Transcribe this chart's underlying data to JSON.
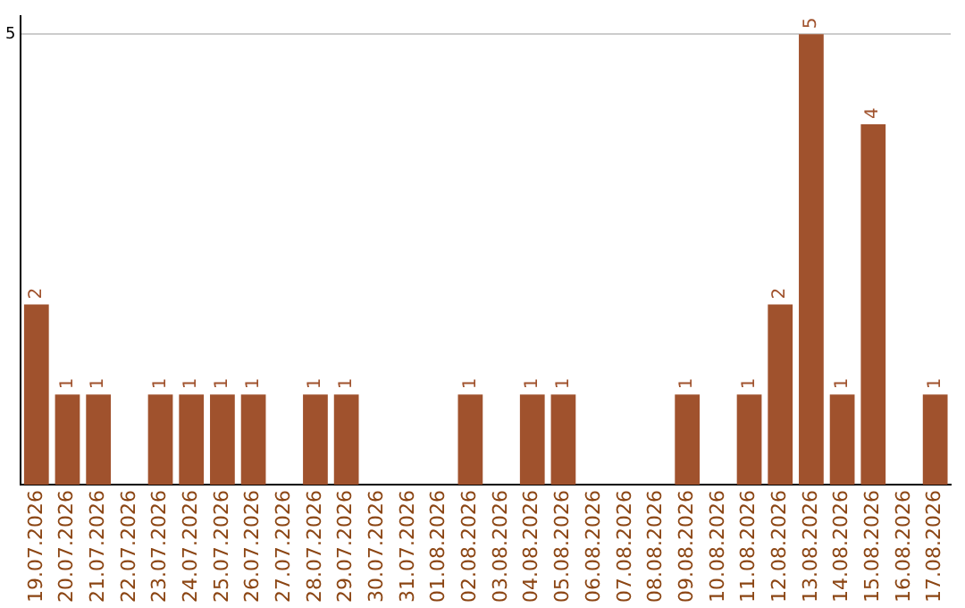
{
  "chart_data": {
    "type": "bar",
    "categories": [
      "19.07.2026",
      "20.07.2026",
      "21.07.2026",
      "22.07.2026",
      "23.07.2026",
      "24.07.2026",
      "25.07.2026",
      "26.07.2026",
      "27.07.2026",
      "28.07.2026",
      "29.07.2026",
      "30.07.2026",
      "31.07.2026",
      "01.08.2026",
      "02.08.2026",
      "03.08.2026",
      "04.08.2026",
      "05.08.2026",
      "06.08.2026",
      "07.08.2026",
      "08.08.2026",
      "09.08.2026",
      "10.08.2026",
      "11.08.2026",
      "12.08.2026",
      "13.08.2026",
      "14.08.2026",
      "15.08.2026",
      "16.08.2026",
      "17.08.2026"
    ],
    "values": [
      2,
      1,
      1,
      0,
      1,
      1,
      1,
      1,
      0,
      1,
      1,
      0,
      0,
      0,
      1,
      0,
      1,
      1,
      0,
      0,
      0,
      1,
      0,
      1,
      2,
      5,
      1,
      4,
      0,
      1
    ],
    "value_labels": [
      "2",
      "1",
      "1",
      null,
      "1",
      "1",
      "1",
      "1",
      null,
      "1",
      "1",
      null,
      null,
      null,
      "1",
      null,
      "1",
      "1",
      null,
      null,
      null,
      "1",
      null,
      "1",
      "2",
      "5",
      "1",
      "4",
      null,
      "1"
    ],
    "color": "#a0522d",
    "ylim": [
      0,
      5.2
    ],
    "yticks": [
      5
    ],
    "grid": "y",
    "legend": false
  }
}
